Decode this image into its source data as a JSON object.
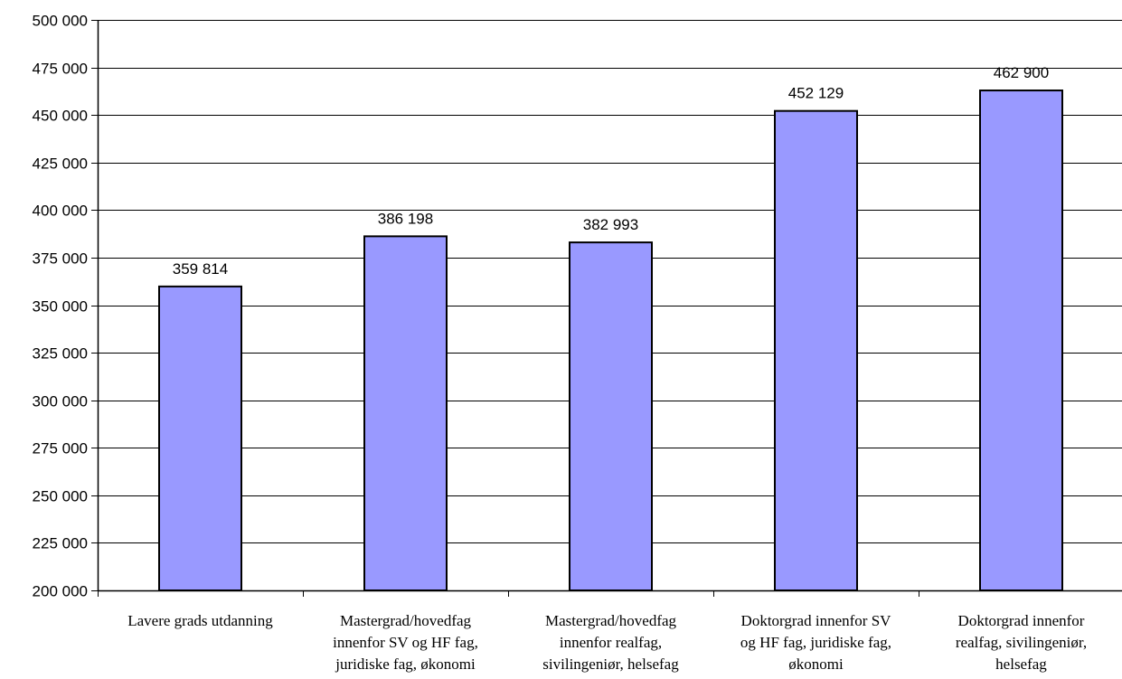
{
  "chart_data": {
    "type": "bar",
    "title": "",
    "xlabel": "",
    "ylabel": "",
    "ylim": [
      200000,
      500000
    ],
    "yticks": [
      200000,
      225000,
      250000,
      275000,
      300000,
      325000,
      350000,
      375000,
      400000,
      425000,
      450000,
      475000,
      500000
    ],
    "ytick_labels": [
      "200 000",
      "225 000",
      "250 000",
      "275 000",
      "300 000",
      "325 000",
      "350 000",
      "375 000",
      "400 000",
      "425 000",
      "450 000",
      "475 000",
      "500 000"
    ],
    "categories": [
      [
        "Lavere grads utdanning"
      ],
      [
        "Mastergrad/hovedfag",
        "innenfor SV og HF fag,",
        "juridiske fag, økonomi"
      ],
      [
        "Mastergrad/hovedfag",
        "innenfor realfag,",
        "sivilingeniør, helsefag"
      ],
      [
        "Doktorgrad innenfor SV",
        "og HF fag, juridiske fag,",
        "økonomi"
      ],
      [
        "Doktorgrad innenfor",
        "realfag, sivilingeniør,",
        "helsefag"
      ]
    ],
    "values": [
      359814,
      386198,
      382993,
      452129,
      462900
    ],
    "data_labels": [
      "359 814",
      "386 198",
      "382 993",
      "452 129",
      "462 900"
    ],
    "grid": true,
    "legend": "none",
    "bar_color": "#9999ff",
    "bar_edge_color": "#000000"
  }
}
